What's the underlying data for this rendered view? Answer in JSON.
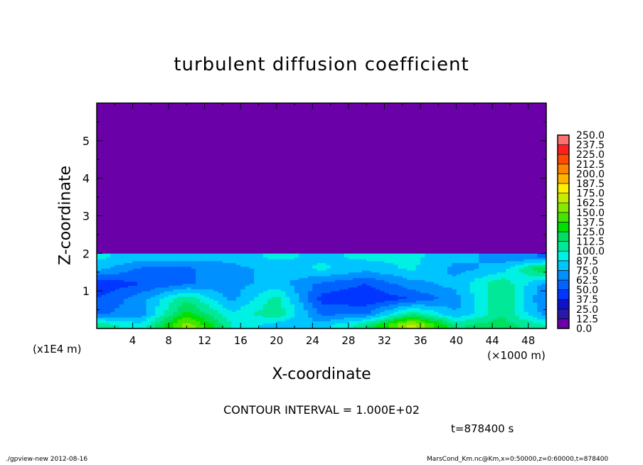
{
  "chart_data": {
    "type": "heatmap",
    "title": "turbulent diffusion coefficient",
    "xlabel": "X-coordinate",
    "ylabel": "Z-coordinate",
    "x_unit_left": "(x1E4 m)",
    "x_unit_right": "(×1000 m)",
    "xlim": [
      0,
      50
    ],
    "ylim": [
      0,
      6
    ],
    "xticks": [
      4,
      8,
      12,
      16,
      20,
      24,
      28,
      32,
      36,
      40,
      44,
      48
    ],
    "yticks": [
      1,
      2,
      3,
      4,
      5
    ],
    "grid_x": [
      0,
      5,
      10,
      15,
      20,
      25,
      30,
      35,
      40,
      45,
      50
    ],
    "grid_z": [
      0.1,
      0.4,
      0.8,
      1.2,
      1.6,
      1.9
    ],
    "values": [
      [
        110,
        90,
        160,
        100,
        80,
        80,
        110,
        170,
        110,
        120,
        100
      ],
      [
        60,
        70,
        130,
        90,
        110,
        60,
        60,
        110,
        75,
        110,
        70
      ],
      [
        50,
        70,
        110,
        70,
        105,
        45,
        40,
        50,
        70,
        115,
        60
      ],
      [
        40,
        50,
        60,
        70,
        80,
        60,
        50,
        70,
        80,
        110,
        70
      ],
      [
        80,
        60,
        60,
        70,
        80,
        90,
        80,
        90,
        70,
        80,
        130
      ],
      [
        90,
        80,
        80,
        80,
        90,
        85,
        90,
        90,
        80,
        70,
        60
      ]
    ],
    "value_above_z2": 5,
    "colorbar": {
      "levels": [
        "0.0",
        "12.5",
        "25.0",
        "37.5",
        "50.0",
        "62.5",
        "75.0",
        "87.5",
        "100.0",
        "112.5",
        "125.0",
        "137.5",
        "150.0",
        "162.5",
        "175.0",
        "187.5",
        "200.0",
        "212.5",
        "225.0",
        "237.5",
        "250.0"
      ],
      "colors": [
        "#6a00a8",
        "#2a18a8",
        "#1010cc",
        "#0036ff",
        "#0062ff",
        "#0090ff",
        "#00c4ff",
        "#00f0e4",
        "#00e898",
        "#00e060",
        "#00e000",
        "#44e400",
        "#88e800",
        "#c8ec00",
        "#fff000",
        "#ffb400",
        "#ff8400",
        "#ff4c00",
        "#ff2020",
        "#ff7070"
      ]
    },
    "contour_interval": "CONTOUR INTERVAL = 1.000E+02"
  },
  "time_label": "t=878400 s",
  "footer_left": "./gpview-new   2012-08-16",
  "footer_right": "MarsCond_Km.nc@Km,x=0:50000,z=0:60000,t=878400"
}
